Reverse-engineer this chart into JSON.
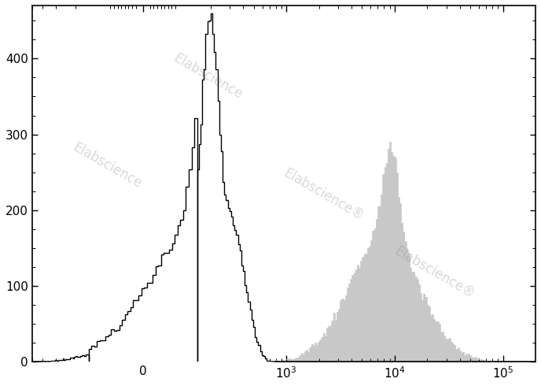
{
  "title": "",
  "xlabel": "",
  "ylabel": "",
  "xlim_left": -500,
  "xlim_right": 200000,
  "ylim_bottom": 0,
  "ylim_top": 470,
  "yticks": [
    0,
    100,
    200,
    300,
    400
  ],
  "background_color": "#ffffff",
  "unstained_color": "white",
  "unstained_edge_color": "black",
  "stained_color": "#c8c8c8",
  "stained_edge_color": "#c8c8c8",
  "unstained_peak_y": 460,
  "stained_peak_y": 290,
  "linthresh": 150,
  "linscale": 0.45
}
